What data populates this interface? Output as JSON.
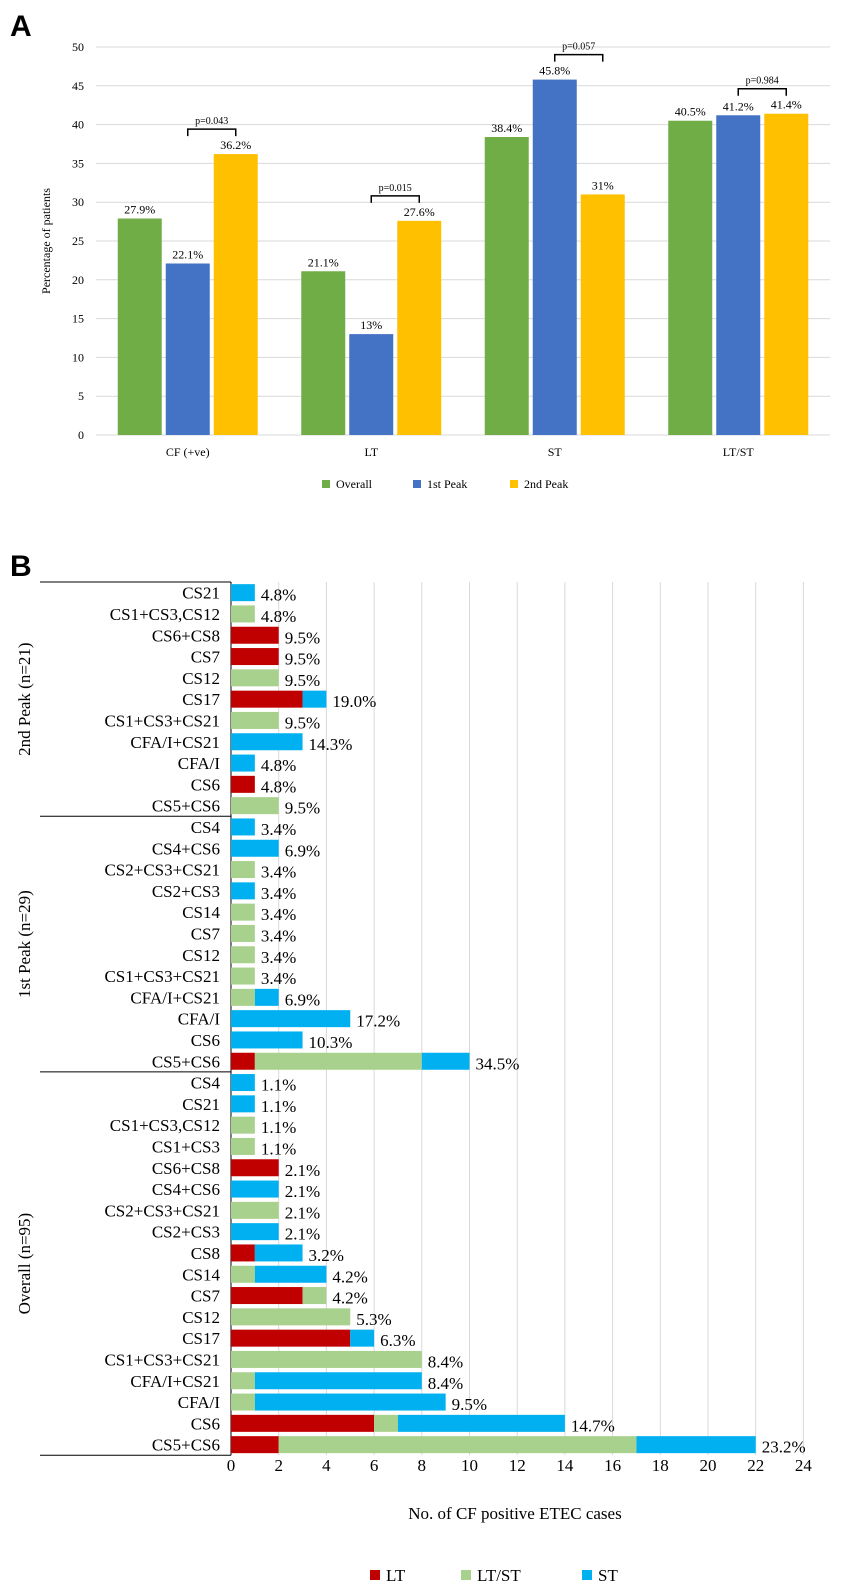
{
  "panel_a_label": "A",
  "panel_b_label": "B",
  "colors": {
    "overall": "#70ad47",
    "peak1": "#4472c4",
    "peak2": "#ffc000",
    "LT": "#c00000",
    "LTST": "#a9d18e",
    "ST": "#00b0f0",
    "grid": "#d9d9d9"
  },
  "chart_data": [
    {
      "type": "bar",
      "title": "",
      "xlabel": "",
      "ylabel": "Percentage of patients",
      "ylim": [
        0,
        50
      ],
      "yticks": [
        0,
        5,
        10,
        15,
        20,
        25,
        30,
        35,
        40,
        45,
        50
      ],
      "categories": [
        "CF (+ve)",
        "LT",
        "ST",
        "LT/ST"
      ],
      "series": [
        {
          "name": "Overall",
          "values": [
            27.9,
            21.1,
            38.4,
            40.5
          ],
          "labels": [
            "27.9%",
            "21.1%",
            "38.4%",
            "40.5%"
          ]
        },
        {
          "name": "1st Peak",
          "values": [
            22.1,
            13,
            45.8,
            41.2
          ],
          "labels": [
            "22.1%",
            "13%",
            "45.8%",
            "41.2%"
          ]
        },
        {
          "name": "2nd Peak",
          "values": [
            36.2,
            27.6,
            31,
            41.4
          ],
          "labels": [
            "36.2%",
            "27.6%",
            "31%",
            "41.4%"
          ]
        }
      ],
      "annotations": [
        "p=0.043",
        "p=0.015",
        "p=0.057",
        "p=0.984"
      ],
      "legend": "bottom"
    },
    {
      "type": "bar",
      "orientation": "horizontal",
      "stacked": true,
      "xlabel": "No. of CF positive ETEC cases",
      "xlim": [
        0,
        24
      ],
      "xticks": [
        0,
        2,
        4,
        6,
        8,
        10,
        12,
        14,
        16,
        18,
        20,
        22,
        24
      ],
      "legend": "bottom",
      "series_names": [
        "LT",
        "LT/ST",
        "ST"
      ],
      "groups": [
        {
          "name": "2nd Peak (n=21)",
          "rows": [
            {
              "label": "CS21",
              "LT": 0,
              "LTST": 0,
              "ST": 1,
              "pct": "4.8%"
            },
            {
              "label": "CS1+CS3,CS12",
              "LT": 0,
              "LTST": 1,
              "ST": 0,
              "pct": "4.8%"
            },
            {
              "label": "CS6+CS8",
              "LT": 2,
              "LTST": 0,
              "ST": 0,
              "pct": "9.5%"
            },
            {
              "label": "CS7",
              "LT": 2,
              "LTST": 0,
              "ST": 0,
              "pct": "9.5%"
            },
            {
              "label": "CS12",
              "LT": 0,
              "LTST": 2,
              "ST": 0,
              "pct": "9.5%"
            },
            {
              "label": "CS17",
              "LT": 3,
              "LTST": 0,
              "ST": 1,
              "pct": "19.0%"
            },
            {
              "label": "CS1+CS3+CS21",
              "LT": 0,
              "LTST": 2,
              "ST": 0,
              "pct": "9.5%"
            },
            {
              "label": "CFA/I+CS21",
              "LT": 0,
              "LTST": 0,
              "ST": 3,
              "pct": "14.3%"
            },
            {
              "label": "CFA/I",
              "LT": 0,
              "LTST": 0,
              "ST": 1,
              "pct": "4.8%"
            },
            {
              "label": "CS6",
              "LT": 1,
              "LTST": 0,
              "ST": 0,
              "pct": "4.8%"
            },
            {
              "label": "CS5+CS6",
              "LT": 0,
              "LTST": 2,
              "ST": 0,
              "pct": "9.5%"
            }
          ]
        },
        {
          "name": "1st Peak (n=29)",
          "rows": [
            {
              "label": "CS4",
              "LT": 0,
              "LTST": 0,
              "ST": 1,
              "pct": "3.4%"
            },
            {
              "label": "CS4+CS6",
              "LT": 0,
              "LTST": 0,
              "ST": 2,
              "pct": "6.9%"
            },
            {
              "label": "CS2+CS3+CS21",
              "LT": 0,
              "LTST": 1,
              "ST": 0,
              "pct": "3.4%"
            },
            {
              "label": "CS2+CS3",
              "LT": 0,
              "LTST": 0,
              "ST": 1,
              "pct": "3.4%"
            },
            {
              "label": "CS14",
              "LT": 0,
              "LTST": 1,
              "ST": 0,
              "pct": "3.4%"
            },
            {
              "label": "CS7",
              "LT": 0,
              "LTST": 1,
              "ST": 0,
              "pct": "3.4%"
            },
            {
              "label": "CS12",
              "LT": 0,
              "LTST": 1,
              "ST": 0,
              "pct": "3.4%"
            },
            {
              "label": "CS1+CS3+CS21",
              "LT": 0,
              "LTST": 1,
              "ST": 0,
              "pct": "3.4%"
            },
            {
              "label": "CFA/I+CS21",
              "LT": 0,
              "LTST": 1,
              "ST": 1,
              "pct": "6.9%"
            },
            {
              "label": "CFA/I",
              "LT": 0,
              "LTST": 0,
              "ST": 5,
              "pct": "17.2%"
            },
            {
              "label": "CS6",
              "LT": 0,
              "LTST": 0,
              "ST": 3,
              "pct": "10.3%"
            },
            {
              "label": "CS5+CS6",
              "LT": 1,
              "LTST": 7,
              "ST": 2,
              "pct": "34.5%"
            }
          ]
        },
        {
          "name": "Overall (n=95)",
          "rows": [
            {
              "label": "CS4",
              "LT": 0,
              "LTST": 0,
              "ST": 1,
              "pct": "1.1%"
            },
            {
              "label": "CS21",
              "LT": 0,
              "LTST": 0,
              "ST": 1,
              "pct": "1.1%"
            },
            {
              "label": "CS1+CS3,CS12",
              "LT": 0,
              "LTST": 1,
              "ST": 0,
              "pct": "1.1%"
            },
            {
              "label": "CS1+CS3",
              "LT": 0,
              "LTST": 1,
              "ST": 0,
              "pct": "1.1%"
            },
            {
              "label": "CS6+CS8",
              "LT": 2,
              "LTST": 0,
              "ST": 0,
              "pct": "2.1%"
            },
            {
              "label": "CS4+CS6",
              "LT": 0,
              "LTST": 0,
              "ST": 2,
              "pct": "2.1%"
            },
            {
              "label": "CS2+CS3+CS21",
              "LT": 0,
              "LTST": 2,
              "ST": 0,
              "pct": "2.1%"
            },
            {
              "label": "CS2+CS3",
              "LT": 0,
              "LTST": 0,
              "ST": 2,
              "pct": "2.1%"
            },
            {
              "label": "CS8",
              "LT": 1,
              "LTST": 0,
              "ST": 2,
              "pct": "3.2%"
            },
            {
              "label": "CS14",
              "LT": 0,
              "LTST": 1,
              "ST": 3,
              "pct": "4.2%"
            },
            {
              "label": "CS7",
              "LT": 3,
              "LTST": 1,
              "ST": 0,
              "pct": "4.2%"
            },
            {
              "label": "CS12",
              "LT": 0,
              "LTST": 5,
              "ST": 0,
              "pct": "5.3%"
            },
            {
              "label": "CS17",
              "LT": 5,
              "LTST": 0,
              "ST": 1,
              "pct": "6.3%"
            },
            {
              "label": "CS1+CS3+CS21",
              "LT": 0,
              "LTST": 8,
              "ST": 0,
              "pct": "8.4%"
            },
            {
              "label": "CFA/I+CS21",
              "LT": 0,
              "LTST": 1,
              "ST": 7,
              "pct": "8.4%"
            },
            {
              "label": "CFA/I",
              "LT": 0,
              "LTST": 1,
              "ST": 8,
              "pct": "9.5%"
            },
            {
              "label": "CS6",
              "LT": 6,
              "LTST": 1,
              "ST": 7,
              "pct": "14.7%"
            },
            {
              "label": "CS5+CS6",
              "LT": 2,
              "LTST": 15,
              "ST": 5,
              "pct": "23.2%"
            }
          ]
        }
      ]
    }
  ]
}
